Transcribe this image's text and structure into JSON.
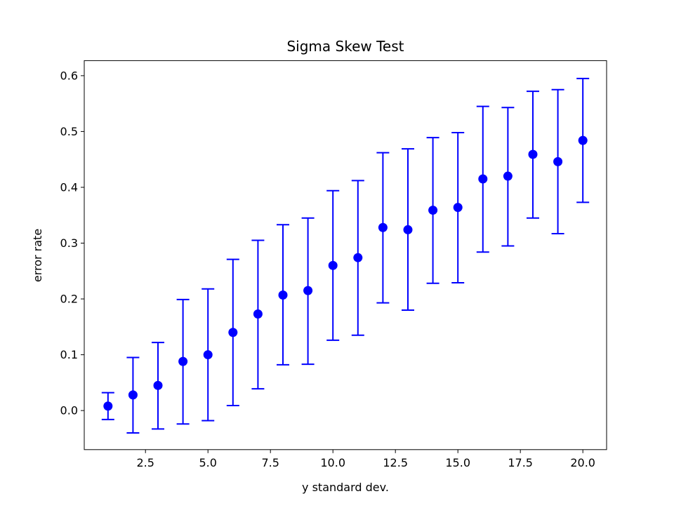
{
  "chart_data": {
    "type": "scatter",
    "title": "Sigma Skew Test",
    "xlabel": "y standard dev.",
    "ylabel": "error rate",
    "xlim": [
      0.05,
      20.95
    ],
    "ylim": [
      -0.07,
      0.627
    ],
    "xticks": [
      2.5,
      5.0,
      7.5,
      10.0,
      12.5,
      15.0,
      17.5,
      20.0
    ],
    "xtick_labels": [
      "2.5",
      "5.0",
      "7.5",
      "10.0",
      "12.5",
      "15.0",
      "17.5",
      "20.0"
    ],
    "yticks": [
      0.0,
      0.1,
      0.2,
      0.3,
      0.4,
      0.5,
      0.6
    ],
    "ytick_labels": [
      "0.0",
      "0.1",
      "0.2",
      "0.3",
      "0.4",
      "0.5",
      "0.6"
    ],
    "grid": false,
    "color": "#0000ff",
    "series": [
      {
        "x": [
          1,
          2,
          3,
          4,
          5,
          6,
          7,
          8,
          9,
          10,
          11,
          12,
          13,
          14,
          15,
          16,
          17,
          18,
          19,
          20
        ],
        "y": [
          0.008,
          0.028,
          0.045,
          0.088,
          0.1,
          0.14,
          0.173,
          0.207,
          0.215,
          0.26,
          0.274,
          0.328,
          0.324,
          0.359,
          0.364,
          0.415,
          0.42,
          0.459,
          0.446,
          0.484
        ],
        "err_low": [
          -0.016,
          -0.04,
          -0.033,
          -0.024,
          -0.018,
          0.009,
          0.039,
          0.082,
          0.083,
          0.126,
          0.135,
          0.193,
          0.18,
          0.228,
          0.229,
          0.284,
          0.295,
          0.345,
          0.317,
          0.373
        ],
        "err_high": [
          0.032,
          0.095,
          0.122,
          0.199,
          0.218,
          0.271,
          0.305,
          0.333,
          0.345,
          0.394,
          0.412,
          0.462,
          0.469,
          0.489,
          0.498,
          0.545,
          0.543,
          0.572,
          0.575,
          0.595
        ]
      }
    ]
  }
}
